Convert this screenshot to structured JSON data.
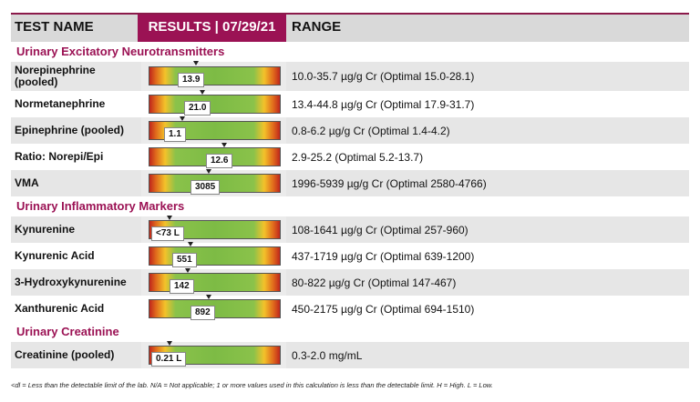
{
  "header": {
    "test_name": "TEST NAME",
    "results": "RESULTS | 07/29/21",
    "range": "RANGE"
  },
  "sections": [
    {
      "title": "Urinary Excitatory Neurotransmitters",
      "rows": [
        {
          "name": "Norepinephrine (pooled)",
          "value": "13.9",
          "position": 0.2,
          "range": "10.0-35.7 µg/g Cr (Optimal 15.0-28.1)"
        },
        {
          "name": "Normetanephrine",
          "value": "21.0",
          "position": 0.25,
          "range": "13.4-44.8 µg/g Cr (Optimal 17.9-31.7)"
        },
        {
          "name": "Epinephrine (pooled)",
          "value": "1.1",
          "position": 0.1,
          "range": "0.8-6.2 µg/g Cr (Optimal 1.4-4.2)"
        },
        {
          "name": "Ratio: Norepi/Epi",
          "value": "12.6",
          "position": 0.42,
          "range": "2.9-25.2 (Optimal 5.2-13.7)"
        },
        {
          "name": "VMA",
          "value": "3085",
          "position": 0.3,
          "range": "1996-5939 µg/g Cr (Optimal 2580-4766)"
        }
      ]
    },
    {
      "title": "Urinary Inflammatory Markers",
      "rows": [
        {
          "name": "Kynurenine",
          "value": "<73 L",
          "position": 0.0,
          "range": "108-1641 µg/g Cr (Optimal 257-960)"
        },
        {
          "name": "Kynurenic Acid",
          "value": "551",
          "position": 0.16,
          "range": "437-1719 µg/g Cr (Optimal 639-1200)"
        },
        {
          "name": "3-Hydroxykynurenine",
          "value": "142",
          "position": 0.14,
          "range": "80-822 µg/g Cr (Optimal 147-467)"
        },
        {
          "name": "Xanthurenic Acid",
          "value": "892",
          "position": 0.3,
          "range": "450-2175 µg/g Cr (Optimal 694-1510)"
        }
      ]
    },
    {
      "title": "Urinary Creatinine",
      "rows": [
        {
          "name": "Creatinine (pooled)",
          "value": "0.21 L",
          "position": 0.0,
          "range": "0.3-2.0 mg/mL"
        }
      ]
    }
  ],
  "footnote": "<dl = Less than the detectable limit of the lab.  N/A = Not applicable; 1 or more values used in this calculation is less than the detectable limit.  H = High.  L = Low."
}
